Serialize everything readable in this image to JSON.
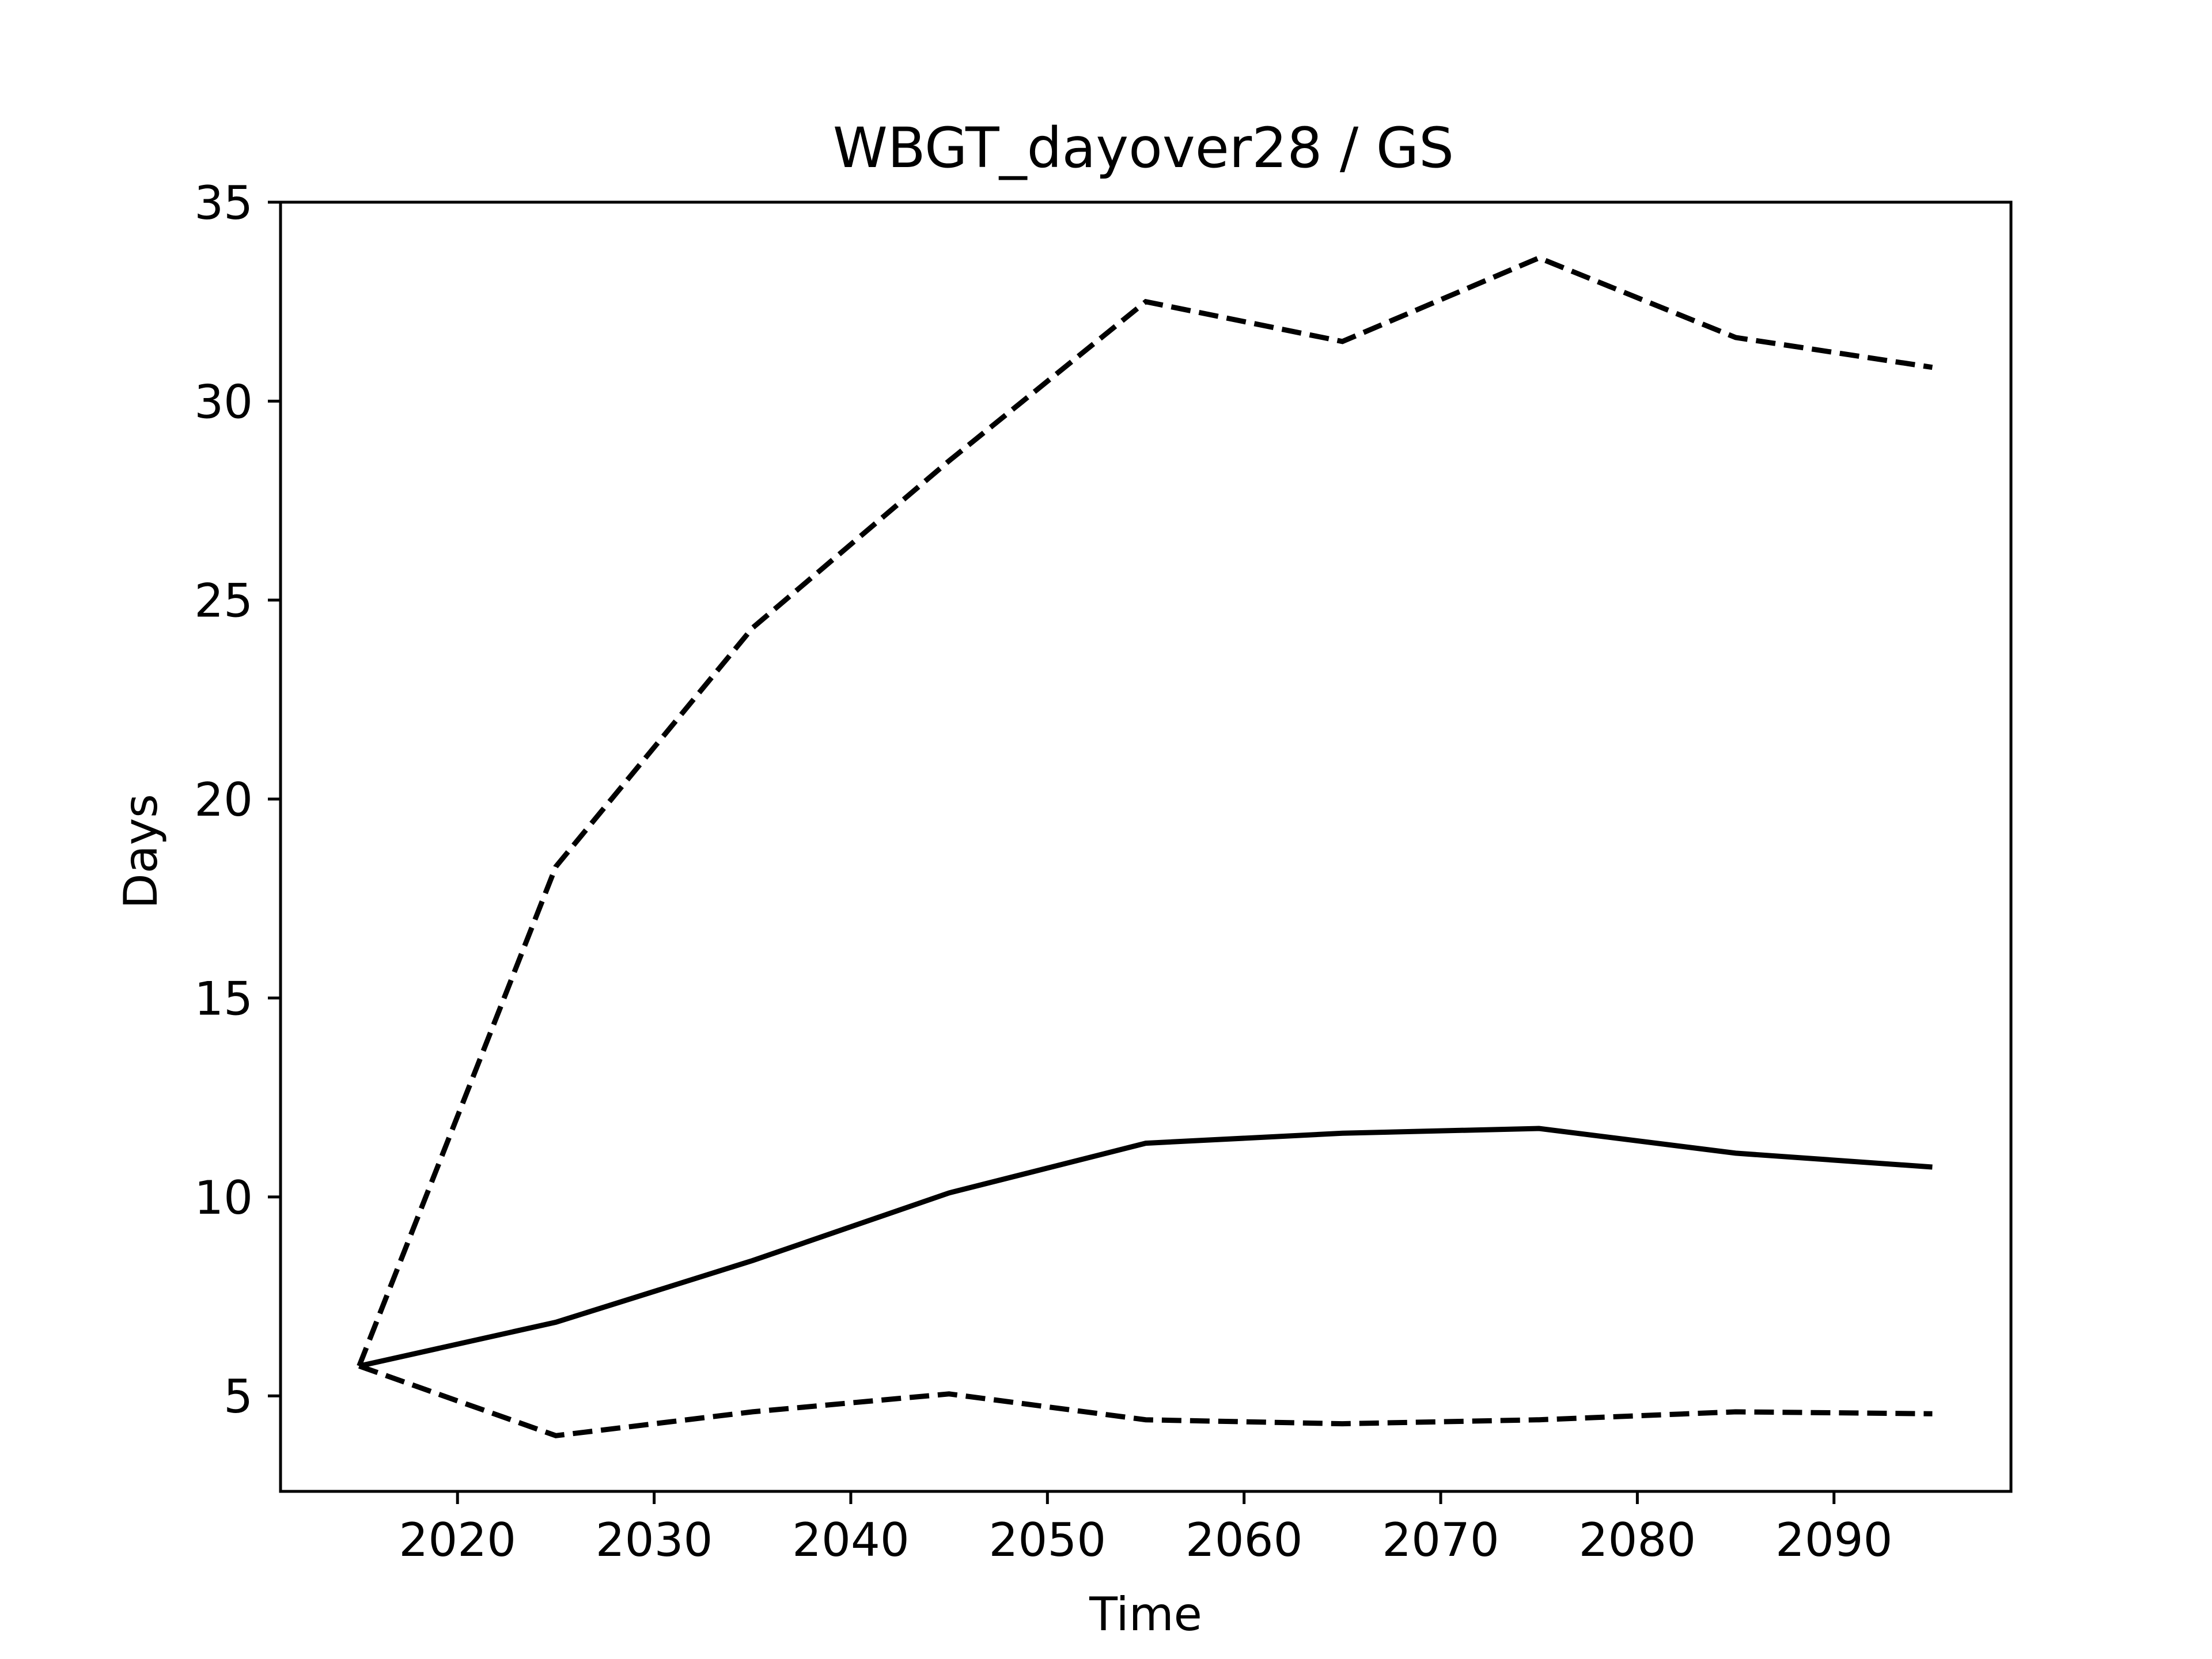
{
  "chart_data": {
    "type": "line",
    "title": "WBGT_dayover28 / GS",
    "xlabel": "Time",
    "ylabel": "Days",
    "x": [
      2015,
      2025,
      2035,
      2045,
      2055,
      2065,
      2075,
      2085,
      2095
    ],
    "series": [
      {
        "style": "solid",
        "values": [
          5.75,
          6.85,
          8.4,
          10.1,
          11.35,
          11.6,
          11.72,
          11.1,
          10.75
        ]
      },
      {
        "style": "dashed",
        "values": [
          5.75,
          18.3,
          24.3,
          28.5,
          32.5,
          31.5,
          33.6,
          31.6,
          30.85
        ]
      },
      {
        "style": "dashed",
        "values": [
          5.75,
          4.0,
          4.6,
          5.05,
          4.4,
          4.3,
          4.4,
          4.6,
          4.55
        ]
      }
    ],
    "xlim": [
      2011,
      2099
    ],
    "ylim": [
      2.6,
      35
    ],
    "xticks": [
      2020,
      2030,
      2040,
      2050,
      2060,
      2070,
      2080,
      2090
    ],
    "yticks": [
      5,
      10,
      15,
      20,
      25,
      30,
      35
    ],
    "grid": false,
    "line_color": "#000000"
  }
}
